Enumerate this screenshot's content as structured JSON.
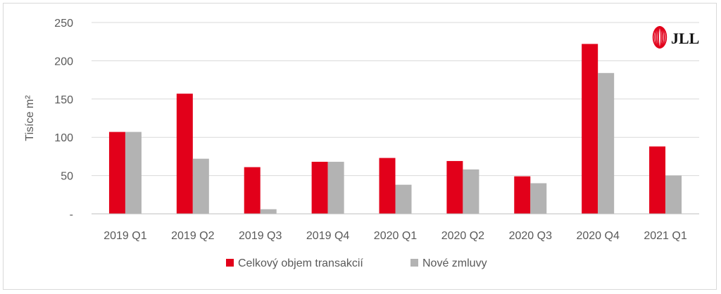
{
  "chart_data": {
    "type": "bar",
    "title": "",
    "xlabel": "",
    "ylabel": "Tisíce m²",
    "ylim": [
      0,
      250
    ],
    "yticks": [
      0,
      50,
      100,
      150,
      200,
      250
    ],
    "ytick_labels": [
      "-",
      "50",
      "100",
      "150",
      "200",
      "250"
    ],
    "grid": true,
    "legend_position": "bottom",
    "categories": [
      "2019 Q1",
      "2019 Q2",
      "2019 Q3",
      "2019 Q4",
      "2020 Q1",
      "2020 Q2",
      "2020 Q3",
      "2020 Q4",
      "2021 Q1"
    ],
    "series": [
      {
        "name": "Celkový objem transakcií",
        "color": "#e2001a",
        "values": [
          107,
          157,
          61,
          68,
          73,
          69,
          49,
          222,
          88
        ]
      },
      {
        "name": "Nové zmluvy",
        "color": "#b3b3b3",
        "values": [
          107,
          72,
          6,
          68,
          38,
          58,
          40,
          184,
          50
        ]
      }
    ]
  },
  "logo": {
    "text": "JLL",
    "icon": "jll-logo-icon",
    "color": "#e2001a"
  }
}
